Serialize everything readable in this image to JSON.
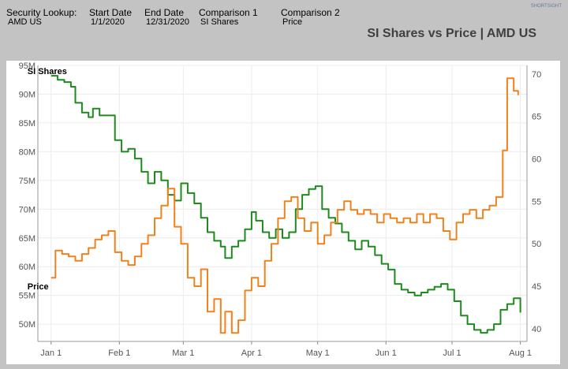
{
  "header": {
    "fields": [
      {
        "label": "Security Lookup:",
        "value": "AMD US"
      },
      {
        "label": "Start Date",
        "value": "1/1/2020"
      },
      {
        "label": "End Date",
        "value": "12/31/2020"
      },
      {
        "label": "Comparison 1",
        "value": "SI Shares"
      },
      {
        "label": "Comparison 2",
        "value": "Price"
      }
    ],
    "title": "SI Shares vs Price | AMD US",
    "logo_text": "SHORTSIGHT"
  },
  "chart_data": {
    "type": "line",
    "title": "SI Shares vs Price | AMD US",
    "x_tick_labels": [
      "Jan 1",
      "Feb 1",
      "Mar 1",
      "Apr 1",
      "May 1",
      "Jun 1",
      "Jul 1",
      "Aug 1"
    ],
    "x_tick_dates": [
      "2020-01-01",
      "2020-02-01",
      "2020-03-01",
      "2020-04-01",
      "2020-05-01",
      "2020-06-01",
      "2020-07-01",
      "2020-08-01"
    ],
    "xlim": [
      "2019-12-26",
      "2020-08-04"
    ],
    "y_left": {
      "ticks": [
        50,
        55,
        60,
        65,
        70,
        75,
        80,
        85,
        90,
        95
      ],
      "tick_labels": [
        "50M",
        "55M",
        "60M",
        "65M",
        "70M",
        "75M",
        "80M",
        "85M",
        "90M",
        "95M"
      ],
      "ylim": [
        47,
        95
      ],
      "unit": "M"
    },
    "y_right": {
      "ticks": [
        40,
        45,
        50,
        55,
        60,
        65,
        70
      ],
      "tick_labels": [
        "40",
        "45",
        "50",
        "55",
        "60",
        "65",
        "70"
      ],
      "ylim": [
        38.5,
        71
      ]
    },
    "grid": true,
    "series": [
      {
        "name": "SI Shares",
        "axis": "left",
        "color": "#1e8a1e",
        "points": [
          [
            "2020-01-01",
            93.2
          ],
          [
            "2020-01-04",
            92.5
          ],
          [
            "2020-01-07",
            92.1
          ],
          [
            "2020-01-10",
            91.3
          ],
          [
            "2020-01-12",
            88.5
          ],
          [
            "2020-01-15",
            86.8
          ],
          [
            "2020-01-18",
            86.0
          ],
          [
            "2020-01-20",
            87.5
          ],
          [
            "2020-01-23",
            86.3
          ],
          [
            "2020-01-27",
            86.3
          ],
          [
            "2020-01-30",
            82.0
          ],
          [
            "2020-02-02",
            80.0
          ],
          [
            "2020-02-05",
            80.5
          ],
          [
            "2020-02-08",
            78.8
          ],
          [
            "2020-02-11",
            76.5
          ],
          [
            "2020-02-14",
            74.5
          ],
          [
            "2020-02-17",
            76.5
          ],
          [
            "2020-02-20",
            75.0
          ],
          [
            "2020-02-23",
            72.5
          ],
          [
            "2020-02-26",
            71.5
          ],
          [
            "2020-02-29",
            74.5
          ],
          [
            "2020-03-03",
            72.8
          ],
          [
            "2020-03-06",
            71.0
          ],
          [
            "2020-03-09",
            68.5
          ],
          [
            "2020-03-12",
            66.0
          ],
          [
            "2020-03-15",
            64.5
          ],
          [
            "2020-03-18",
            63.5
          ],
          [
            "2020-03-20",
            61.5
          ],
          [
            "2020-03-23",
            63.5
          ],
          [
            "2020-03-26",
            64.5
          ],
          [
            "2020-03-29",
            66.5
          ],
          [
            "2020-04-01",
            69.5
          ],
          [
            "2020-04-03",
            68.0
          ],
          [
            "2020-04-06",
            66.0
          ],
          [
            "2020-04-09",
            65.0
          ],
          [
            "2020-04-12",
            66.5
          ],
          [
            "2020-04-15",
            65.0
          ],
          [
            "2020-04-18",
            66.0
          ],
          [
            "2020-04-21",
            70.0
          ],
          [
            "2020-04-24",
            72.5
          ],
          [
            "2020-04-27",
            73.5
          ],
          [
            "2020-04-30",
            74.0
          ],
          [
            "2020-05-03",
            70.0
          ],
          [
            "2020-05-06",
            68.5
          ],
          [
            "2020-05-09",
            67.5
          ],
          [
            "2020-05-12",
            66.0
          ],
          [
            "2020-05-15",
            64.5
          ],
          [
            "2020-05-18",
            63.0
          ],
          [
            "2020-05-21",
            64.5
          ],
          [
            "2020-05-24",
            63.5
          ],
          [
            "2020-05-27",
            62.0
          ],
          [
            "2020-05-30",
            60.5
          ],
          [
            "2020-06-02",
            59.5
          ],
          [
            "2020-06-05",
            57.0
          ],
          [
            "2020-06-08",
            56.0
          ],
          [
            "2020-06-11",
            55.5
          ],
          [
            "2020-06-14",
            55.0
          ],
          [
            "2020-06-17",
            55.5
          ],
          [
            "2020-06-20",
            56.0
          ],
          [
            "2020-06-23",
            56.5
          ],
          [
            "2020-06-26",
            57.0
          ],
          [
            "2020-06-29",
            56.0
          ],
          [
            "2020-07-02",
            54.0
          ],
          [
            "2020-07-05",
            51.5
          ],
          [
            "2020-07-08",
            50.0
          ],
          [
            "2020-07-11",
            49.0
          ],
          [
            "2020-07-14",
            48.5
          ],
          [
            "2020-07-17",
            49.0
          ],
          [
            "2020-07-20",
            50.0
          ],
          [
            "2020-07-23",
            52.5
          ],
          [
            "2020-07-26",
            53.5
          ],
          [
            "2020-07-29",
            54.5
          ],
          [
            "2020-08-01",
            52.0
          ]
        ]
      },
      {
        "name": "Price",
        "axis": "right",
        "color": "#f0821e",
        "points": [
          [
            "2020-01-01",
            46.0
          ],
          [
            "2020-01-03",
            49.2
          ],
          [
            "2020-01-06",
            48.8
          ],
          [
            "2020-01-09",
            48.5
          ],
          [
            "2020-01-12",
            48.0
          ],
          [
            "2020-01-15",
            48.8
          ],
          [
            "2020-01-18",
            49.5
          ],
          [
            "2020-01-21",
            50.5
          ],
          [
            "2020-01-24",
            51.0
          ],
          [
            "2020-01-27",
            51.5
          ],
          [
            "2020-01-30",
            49.0
          ],
          [
            "2020-02-02",
            48.0
          ],
          [
            "2020-02-05",
            47.5
          ],
          [
            "2020-02-08",
            48.5
          ],
          [
            "2020-02-11",
            50.0
          ],
          [
            "2020-02-14",
            51.0
          ],
          [
            "2020-02-17",
            53.0
          ],
          [
            "2020-02-20",
            54.5
          ],
          [
            "2020-02-23",
            56.5
          ],
          [
            "2020-02-26",
            52.0
          ],
          [
            "2020-02-29",
            50.0
          ],
          [
            "2020-03-03",
            46.0
          ],
          [
            "2020-03-06",
            45.0
          ],
          [
            "2020-03-09",
            47.0
          ],
          [
            "2020-03-12",
            42.0
          ],
          [
            "2020-03-15",
            43.5
          ],
          [
            "2020-03-18",
            39.5
          ],
          [
            "2020-03-20",
            42.0
          ],
          [
            "2020-03-23",
            39.5
          ],
          [
            "2020-03-26",
            41.0
          ],
          [
            "2020-03-29",
            44.5
          ],
          [
            "2020-04-01",
            46.0
          ],
          [
            "2020-04-04",
            45.0
          ],
          [
            "2020-04-07",
            48.0
          ],
          [
            "2020-04-10",
            50.0
          ],
          [
            "2020-04-13",
            53.0
          ],
          [
            "2020-04-16",
            55.0
          ],
          [
            "2020-04-19",
            55.5
          ],
          [
            "2020-04-22",
            53.0
          ],
          [
            "2020-04-25",
            51.5
          ],
          [
            "2020-04-28",
            52.5
          ],
          [
            "2020-05-01",
            50.0
          ],
          [
            "2020-05-04",
            51.0
          ],
          [
            "2020-05-07",
            52.5
          ],
          [
            "2020-05-10",
            54.0
          ],
          [
            "2020-05-13",
            55.0
          ],
          [
            "2020-05-16",
            54.0
          ],
          [
            "2020-05-19",
            53.5
          ],
          [
            "2020-05-22",
            54.0
          ],
          [
            "2020-05-25",
            53.5
          ],
          [
            "2020-05-28",
            52.5
          ],
          [
            "2020-05-31",
            53.5
          ],
          [
            "2020-06-03",
            53.0
          ],
          [
            "2020-06-06",
            52.5
          ],
          [
            "2020-06-09",
            53.0
          ],
          [
            "2020-06-12",
            52.5
          ],
          [
            "2020-06-15",
            53.5
          ],
          [
            "2020-06-18",
            52.5
          ],
          [
            "2020-06-21",
            53.5
          ],
          [
            "2020-06-24",
            53.0
          ],
          [
            "2020-06-27",
            51.5
          ],
          [
            "2020-06-30",
            50.5
          ],
          [
            "2020-07-03",
            52.5
          ],
          [
            "2020-07-06",
            53.5
          ],
          [
            "2020-07-09",
            54.0
          ],
          [
            "2020-07-12",
            53.0
          ],
          [
            "2020-07-15",
            54.0
          ],
          [
            "2020-07-18",
            54.5
          ],
          [
            "2020-07-21",
            55.5
          ],
          [
            "2020-07-24",
            61.0
          ],
          [
            "2020-07-26",
            69.5
          ],
          [
            "2020-07-29",
            68.0
          ],
          [
            "2020-07-31",
            67.5
          ]
        ]
      }
    ],
    "annotations": [
      {
        "text": "SI Shares",
        "series": "SI Shares"
      },
      {
        "text": "Price",
        "series": "Price"
      }
    ]
  }
}
